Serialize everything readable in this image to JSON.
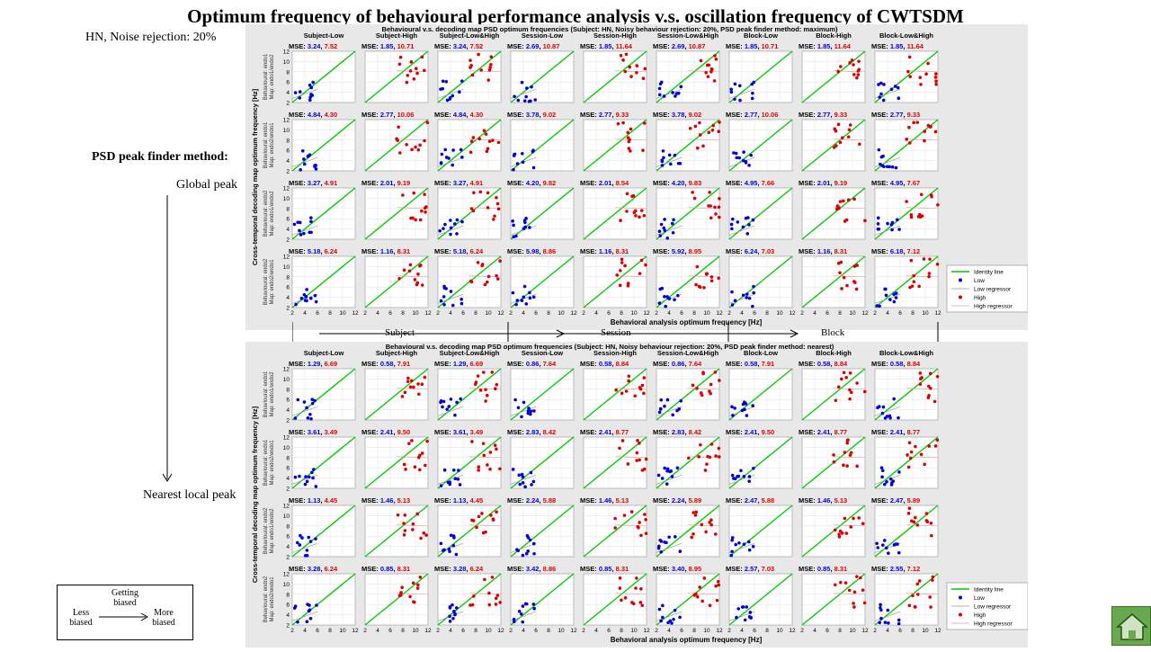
{
  "page": {
    "title": "Optimum frequency of behavioural performance analysis v.s. oscillation frequency of CWTSDM",
    "subtitle_hn": "HN, Noise rejection:  20%",
    "psd_method_label": "PSD peak finder method:",
    "global_peak": "Global peak",
    "nearest_peak": "Nearest local peak",
    "bias_legend": {
      "getting": "Getting biased",
      "less": "Less biased",
      "more": "More biased"
    },
    "groups": [
      "Subject",
      "Session",
      "Block"
    ],
    "home_icon": "home-icon"
  },
  "colors": {
    "low": "#0000dd",
    "high": "#dd0000",
    "identity": "#00cc00",
    "regressor": "#999999",
    "panel_bg": "#e8e8e8"
  },
  "chart_data": [
    {
      "type": "scatter",
      "title": "Behavioural v.s. decoding map PSD optimum frequencies (Subject: HN, Noisy behaviour rejection: 20%, PSD peak finder method: maximum)",
      "xlabel": "Behavioral analysis optimum frequency [Hz]",
      "ylabel": "Cross-temporal decoding map optimum frequency [Hz]",
      "columns": [
        "Subject-Low",
        "Subject-High",
        "Subject-Low&High",
        "Session-Low",
        "Session-High",
        "Session-Low&High",
        "Block-Low",
        "Block-High",
        "Block-Low&High"
      ],
      "row_labels": [
        [
          "Behavioural: endo1",
          "Map: endo1/endo2"
        ],
        [
          "Behavioural: endo1",
          "Map: endo2/endo1"
        ],
        [
          "Behavioural: endo2",
          "Map: endo1/endo2"
        ],
        [
          "Behavioural: endo2",
          "Map: endo2/endo1"
        ]
      ],
      "xlim": [
        2,
        12
      ],
      "ylim": [
        2,
        12
      ],
      "xticks": [
        2,
        4,
        6,
        8,
        10,
        12
      ],
      "yticks": [
        2,
        4,
        6,
        8,
        10,
        12
      ],
      "mse": [
        [
          [
            "3.24",
            "7.52"
          ],
          [
            "1.85",
            "10.71"
          ],
          [
            "3.24",
            "7.52"
          ],
          [
            "2.69",
            "10.87"
          ],
          [
            "1.85",
            "11.64"
          ],
          [
            "2.69",
            "10.87"
          ],
          [
            "1.85",
            "10.71"
          ],
          [
            "1.85",
            "11.64"
          ],
          [
            "1.85",
            "11.64"
          ]
        ],
        [
          [
            "4.84",
            "4.30"
          ],
          [
            "2.77",
            "10.06"
          ],
          [
            "4.84",
            "4.30"
          ],
          [
            "3.78",
            "9.02"
          ],
          [
            "2.77",
            "9.33"
          ],
          [
            "3.78",
            "9.02"
          ],
          [
            "2.77",
            "10.06"
          ],
          [
            "2.77",
            "9.33"
          ],
          [
            "2.77",
            "9.33"
          ]
        ],
        [
          [
            "3.27",
            "4.91"
          ],
          [
            "2.01",
            "9.19"
          ],
          [
            "3.27",
            "4.91"
          ],
          [
            "4.20",
            "9.82"
          ],
          [
            "2.01",
            "8.54"
          ],
          [
            "4.20",
            "9.83"
          ],
          [
            "4.95",
            "7.66"
          ],
          [
            "2.01",
            "9.19"
          ],
          [
            "4.95",
            "7.67"
          ]
        ],
        [
          [
            "5.18",
            "6.24"
          ],
          [
            "1.16",
            "8.31"
          ],
          [
            "5.18",
            "6.24"
          ],
          [
            "5.98",
            "8.86"
          ],
          [
            "1.16",
            "8.31"
          ],
          [
            "5.92",
            "8.95"
          ],
          [
            "6.24",
            "7.03"
          ],
          [
            "1.16",
            "8.31"
          ],
          [
            "6.18",
            "7.12"
          ]
        ]
      ],
      "legend": [
        "Identity line",
        "Low",
        "Low regressor",
        "High",
        "High regressor"
      ]
    },
    {
      "type": "scatter",
      "title": "Behavioural v.s. decoding map PSD optimum frequencies (Subject: HN, Noisy behaviour rejection: 20%, PSD peak finder method: nearest)",
      "xlabel": "Behavioral analysis optimum frequency [Hz]",
      "ylabel": "Cross-temporal decoding map optimum frequency [Hz]",
      "columns": [
        "Subject-Low",
        "Subject-High",
        "Subject-Low&High",
        "Session-Low",
        "Session-High",
        "Session-Low&High",
        "Block-Low",
        "Block-High",
        "Block-Low&High"
      ],
      "row_labels": [
        [
          "Behavioural: endo1",
          "Map: endo1/endo2"
        ],
        [
          "Behavioural: endo1",
          "Map: endo2/endo1"
        ],
        [
          "Behavioural: endo2",
          "Map: endo1/endo2"
        ],
        [
          "Behavioural: endo2",
          "Map: endo2/endo1"
        ]
      ],
      "xlim": [
        2,
        12
      ],
      "ylim": [
        2,
        12
      ],
      "xticks": [
        2,
        4,
        6,
        8,
        10,
        12
      ],
      "yticks": [
        2,
        4,
        6,
        8,
        10,
        12
      ],
      "mse": [
        [
          [
            "1.29",
            "6.69"
          ],
          [
            "0.58",
            "7.91"
          ],
          [
            "1.29",
            "6.69"
          ],
          [
            "0.86",
            "7.64"
          ],
          [
            "0.58",
            "8.84"
          ],
          [
            "0.86",
            "7.64"
          ],
          [
            "0.58",
            "7.91"
          ],
          [
            "0.58",
            "8.84"
          ],
          [
            "0.58",
            "8.84"
          ]
        ],
        [
          [
            "3.61",
            "3.49"
          ],
          [
            "2.41",
            "9.50"
          ],
          [
            "3.61",
            "3.49"
          ],
          [
            "2.83",
            "8.42"
          ],
          [
            "2.41",
            "8.77"
          ],
          [
            "2.83",
            "8.42"
          ],
          [
            "2.41",
            "9.50"
          ],
          [
            "2.41",
            "8.77"
          ],
          [
            "2.41",
            "8.77"
          ]
        ],
        [
          [
            "1.13",
            "4.45"
          ],
          [
            "1.46",
            "5.13"
          ],
          [
            "1.13",
            "4.45"
          ],
          [
            "2.24",
            "5.88"
          ],
          [
            "1.46",
            "5.13"
          ],
          [
            "2.24",
            "5.89"
          ],
          [
            "2.47",
            "5.88"
          ],
          [
            "1.46",
            "5.13"
          ],
          [
            "2.47",
            "5.89"
          ]
        ],
        [
          [
            "3.28",
            "6.24"
          ],
          [
            "0.85",
            "8.31"
          ],
          [
            "3.28",
            "6.24"
          ],
          [
            "3.42",
            "8.86"
          ],
          [
            "0.85",
            "8.31"
          ],
          [
            "3.40",
            "8.95"
          ],
          [
            "2.57",
            "7.03"
          ],
          [
            "0.85",
            "8.31"
          ],
          [
            "2.55",
            "7.12"
          ]
        ]
      ],
      "legend": [
        "Identity line",
        "Low",
        "Low regressor",
        "High",
        "High regressor"
      ]
    }
  ]
}
